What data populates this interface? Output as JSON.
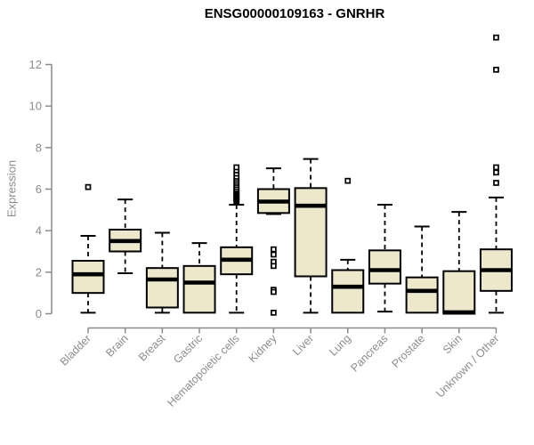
{
  "title": "ENSG00000109163 - GNRHR",
  "chart_data": {
    "type": "boxplot",
    "title": "ENSG00000109163 - GNRHR",
    "xlabel": "",
    "ylabel": "Expression",
    "ylim": [
      0,
      12
    ],
    "yticks": [
      0,
      2,
      4,
      6,
      8,
      10,
      12
    ],
    "grid": false,
    "legend": "none",
    "categories": [
      "Bladder",
      "Brain",
      "Breast",
      "Gastric",
      "Hematopoietic cells",
      "Kidney",
      "Liver",
      "Lung",
      "Pancreas",
      "Prostate",
      "Skin",
      "Unknown / Other"
    ],
    "series": [
      {
        "name": "Bladder",
        "low": 0.05,
        "q1": 1.0,
        "median": 1.9,
        "q3": 2.55,
        "high": 3.75,
        "outliers": [
          6.1
        ]
      },
      {
        "name": "Brain",
        "low": 1.95,
        "q1": 3.0,
        "median": 3.5,
        "q3": 4.05,
        "high": 5.5,
        "outliers": []
      },
      {
        "name": "Breast",
        "low": 0.05,
        "q1": 0.3,
        "median": 1.65,
        "q3": 2.2,
        "high": 3.9,
        "outliers": []
      },
      {
        "name": "Gastric",
        "low": 0.05,
        "q1": 0.05,
        "median": 1.5,
        "q3": 2.3,
        "high": 3.4,
        "outliers": []
      },
      {
        "name": "Hematopoietic cells",
        "low": 0.05,
        "q1": 1.9,
        "median": 2.6,
        "q3": 3.2,
        "high": 5.25,
        "outliers": [
          5.4,
          5.45,
          5.5,
          5.55,
          5.6,
          5.65,
          5.7,
          5.75,
          5.8,
          5.85,
          5.9,
          5.95,
          6.0,
          6.1,
          6.2,
          6.3,
          6.4,
          6.5,
          6.6,
          6.75,
          6.9,
          7.05
        ]
      },
      {
        "name": "Kidney",
        "low": 4.8,
        "q1": 4.85,
        "median": 5.4,
        "q3": 6.0,
        "high": 7.0,
        "outliers": [
          3.1,
          2.85,
          2.5,
          2.3,
          1.15,
          1.05,
          0.05
        ]
      },
      {
        "name": "Liver",
        "low": 0.05,
        "q1": 1.8,
        "median": 5.2,
        "q3": 6.05,
        "high": 7.45,
        "outliers": []
      },
      {
        "name": "Lung",
        "low": 0.05,
        "q1": 0.05,
        "median": 1.3,
        "q3": 2.1,
        "high": 2.6,
        "outliers": [
          6.4
        ]
      },
      {
        "name": "Pancreas",
        "low": 0.1,
        "q1": 1.45,
        "median": 2.1,
        "q3": 3.05,
        "high": 5.25,
        "outliers": []
      },
      {
        "name": "Prostate",
        "low": 0.05,
        "q1": 0.05,
        "median": 1.1,
        "q3": 1.75,
        "high": 4.2,
        "outliers": []
      },
      {
        "name": "Skin",
        "low": 0.0,
        "q1": 0.0,
        "median": 0.07,
        "q3": 2.05,
        "high": 4.9,
        "outliers": []
      },
      {
        "name": "Unknown / Other",
        "low": 0.05,
        "q1": 1.1,
        "median": 2.1,
        "q3": 3.1,
        "high": 5.6,
        "outliers": [
          6.3,
          6.8,
          7.05,
          11.75,
          13.3
        ]
      }
    ],
    "colors": {
      "box_fill": "#EDE7CB",
      "box_stroke": "#000000",
      "median": "#000000",
      "whisker": "#000000",
      "outlier_stroke": "#000000",
      "outlier_fill": "#FFFFFF",
      "axis": "#8C8C8C",
      "tick_label": "#8C8C8C",
      "title": "#000000",
      "background": "#FFFFFF"
    }
  }
}
